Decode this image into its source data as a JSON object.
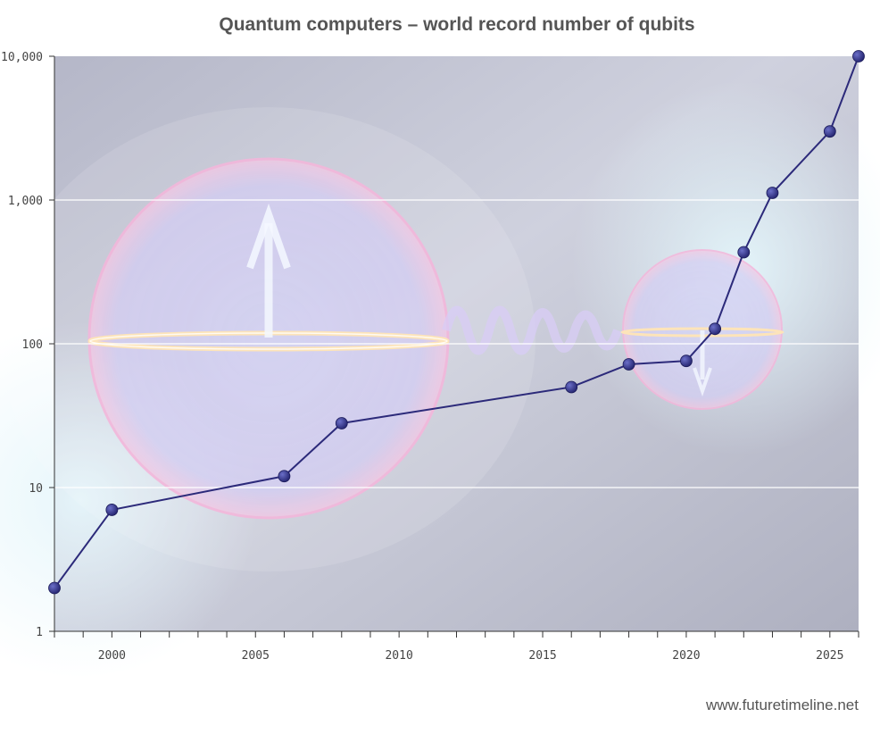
{
  "chart_data": {
    "type": "line",
    "title": "Quantum computers – world record number of qubits",
    "xlabel": "",
    "ylabel": "",
    "yscale": "log",
    "ylim": [
      1,
      10000
    ],
    "xlim": [
      1998,
      2026
    ],
    "grid": true,
    "x_ticks": [
      "2000",
      "2005",
      "2010",
      "2015",
      "2020",
      "2025"
    ],
    "y_ticks": [
      "1",
      "10",
      "100",
      "1,000",
      "10,000"
    ],
    "series": [
      {
        "points": [
          {
            "x": 1998,
            "y": 2
          },
          {
            "x": 2000,
            "y": 7
          },
          {
            "x": 2006,
            "y": 12
          },
          {
            "x": 2008,
            "y": 28
          },
          {
            "x": 2016,
            "y": 50
          },
          {
            "x": 2018,
            "y": 72
          },
          {
            "x": 2020,
            "y": 76
          },
          {
            "x": 2021,
            "y": 127
          },
          {
            "x": 2022,
            "y": 433
          },
          {
            "x": 2023,
            "y": 1121
          },
          {
            "x": 2025,
            "y": 3000
          },
          {
            "x": 2026,
            "y": 10000
          }
        ]
      }
    ],
    "colors": {
      "line": "#2c2a7a",
      "marker": "#2b2d86",
      "grid": "#ffffff"
    }
  },
  "credit": "www.futuretimeline.net"
}
